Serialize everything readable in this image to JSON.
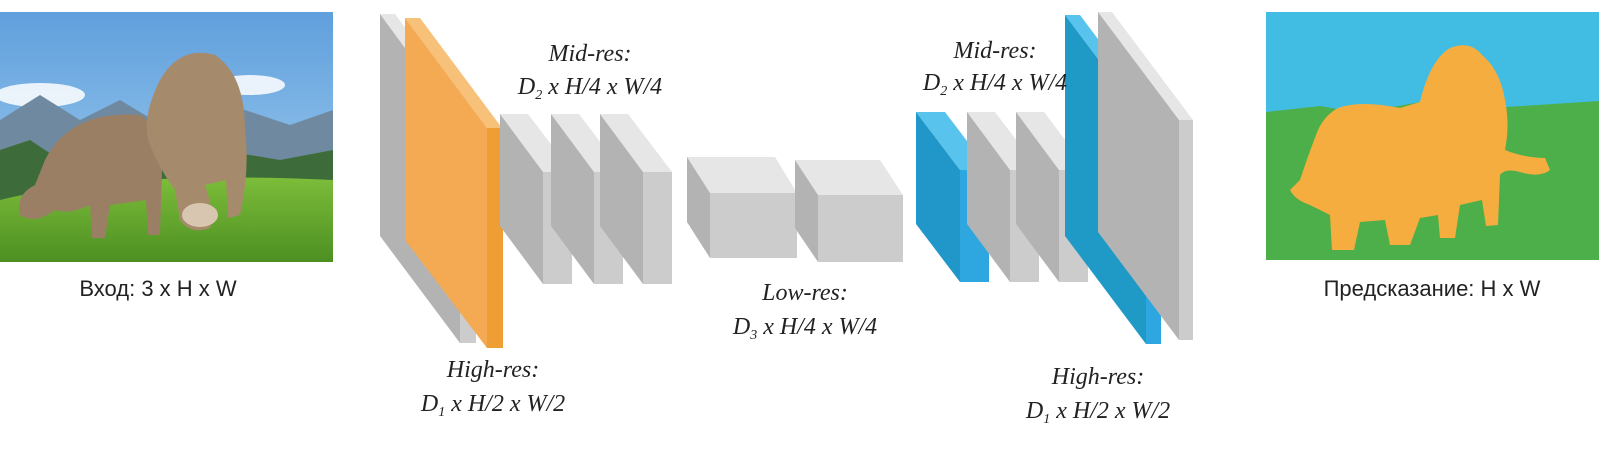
{
  "input": {
    "caption": "Вход: 3 x H x W",
    "image_alt": "photo of two cows grazing in an alpine meadow"
  },
  "output": {
    "caption": "Предсказание: H x W",
    "image_alt": "segmentation mask: cows, grass, sky"
  },
  "labels": {
    "high_res_left": {
      "title": "High-res:",
      "dim": "D",
      "sub": "1",
      "rest": " x H/2 x W/2"
    },
    "mid_res_left": {
      "title": "Mid-res:",
      "dim": "D",
      "sub": "2",
      "rest": " x H/4 x W/4"
    },
    "low_res": {
      "title": "Low-res:",
      "dim": "D",
      "sub": "3",
      "rest": " x H/4 x W/4"
    },
    "mid_res_right": {
      "title": "Mid-res:",
      "dim": "D",
      "sub": "2",
      "rest": " x H/4 x W/4"
    },
    "high_res_right": {
      "title": "High-res:",
      "dim": "D",
      "sub": "1",
      "rest": " x H/2 x W/2"
    }
  },
  "colors": {
    "gray_front": "#c8c8c8",
    "gray_side": "#b0b0b0",
    "gray_top": "#e4e4e4",
    "orange_front": "#f0a43a",
    "orange_side": "#f6b765",
    "blue_front": "#2ea7e0",
    "blue_side": "#2197c9",
    "seg_sky": "#41bde3",
    "seg_grass": "#4daf4a",
    "seg_cow": "#f6ad3f"
  }
}
